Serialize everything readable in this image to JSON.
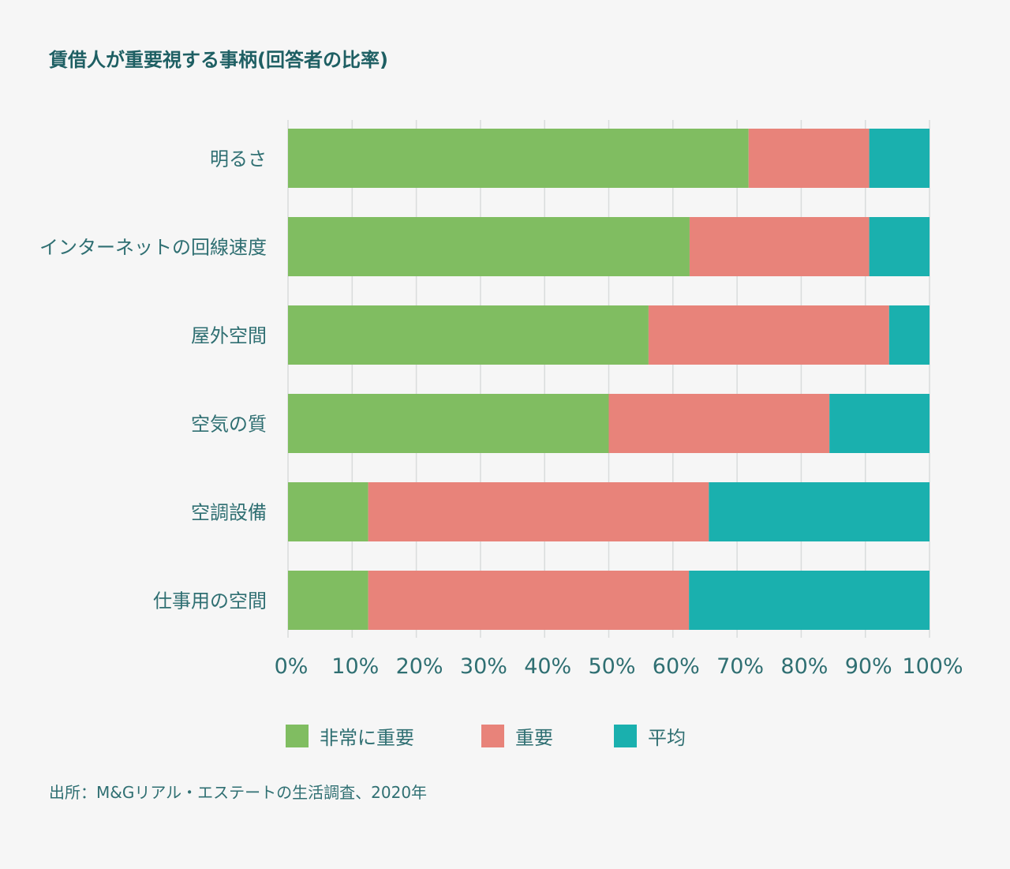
{
  "source": "出所：M&Gリアル・エステートの生活調査、2020年",
  "chart_data": {
    "type": "bar",
    "orientation": "horizontal",
    "stacked": true,
    "title": "賃借人が重要視する事柄(回答者の比率)",
    "xlabel": "",
    "ylabel": "",
    "xlim": [
      0,
      100
    ],
    "x_ticks": [
      "0%",
      "10%",
      "20%",
      "30%",
      "40%",
      "50%",
      "60%",
      "70%",
      "80%",
      "90%",
      "100%"
    ],
    "grid": "vertical",
    "legend_position": "bottom",
    "categories": [
      "明るさ",
      "インターネットの回線速度",
      "屋外空間",
      "空気の質",
      "空調設備",
      "仕事用の空間"
    ],
    "series": [
      {
        "name": "非常に重要",
        "color": "#80bd61",
        "values": [
          71.8,
          62.6,
          56.2,
          50.0,
          12.5,
          12.5
        ]
      },
      {
        "name": "重要",
        "color": "#e8837a",
        "values": [
          18.8,
          28.0,
          37.5,
          34.4,
          53.1,
          50.0
        ]
      },
      {
        "name": "平均",
        "color": "#1ab0ae",
        "values": [
          9.4,
          9.4,
          6.3,
          15.6,
          34.4,
          37.5
        ]
      }
    ]
  }
}
